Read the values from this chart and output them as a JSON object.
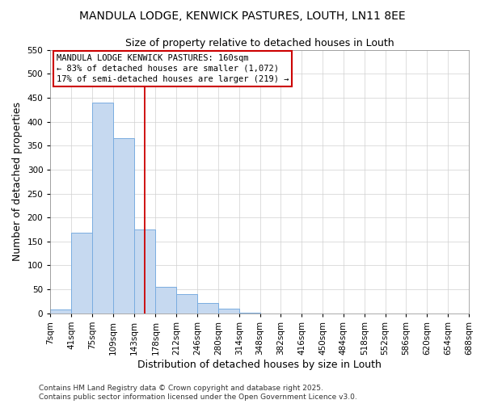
{
  "title": "MANDULA LODGE, KENWICK PASTURES, LOUTH, LN11 8EE",
  "subtitle": "Size of property relative to detached houses in Louth",
  "xlabel": "Distribution of detached houses by size in Louth",
  "ylabel": "Number of detached properties",
  "bin_edges": [
    7,
    41,
    75,
    109,
    143,
    178,
    212,
    246,
    280,
    314,
    348,
    382,
    416,
    450,
    484,
    518,
    552,
    586,
    620,
    654,
    688
  ],
  "bin_labels": [
    "7sqm",
    "41sqm",
    "75sqm",
    "109sqm",
    "143sqm",
    "178sqm",
    "212sqm",
    "246sqm",
    "280sqm",
    "314sqm",
    "348sqm",
    "382sqm",
    "416sqm",
    "450sqm",
    "484sqm",
    "518sqm",
    "552sqm",
    "586sqm",
    "620sqm",
    "654sqm",
    "688sqm"
  ],
  "bar_heights": [
    8,
    168,
    440,
    365,
    175,
    55,
    40,
    22,
    10,
    2,
    0,
    0,
    0,
    0,
    0,
    0,
    0,
    0,
    0,
    0
  ],
  "bar_color": "#c6d9f0",
  "bar_edge_color": "#7aade0",
  "grid_color": "#d0d0d0",
  "vline_x": 160,
  "vline_color": "#cc0000",
  "annotation_box_text": "MANDULA LODGE KENWICK PASTURES: 160sqm\n← 83% of detached houses are smaller (1,072)\n17% of semi-detached houses are larger (219) →",
  "annotation_box_color": "#cc0000",
  "ylim": [
    0,
    550
  ],
  "yticks": [
    0,
    50,
    100,
    150,
    200,
    250,
    300,
    350,
    400,
    450,
    500,
    550
  ],
  "footnote1": "Contains HM Land Registry data © Crown copyright and database right 2025.",
  "footnote2": "Contains public sector information licensed under the Open Government Licence v3.0.",
  "bg_color": "#ffffff",
  "title_fontsize": 10,
  "subtitle_fontsize": 9,
  "axis_label_fontsize": 9,
  "tick_fontsize": 7.5,
  "annotation_fontsize": 7.5,
  "footnote_fontsize": 6.5
}
